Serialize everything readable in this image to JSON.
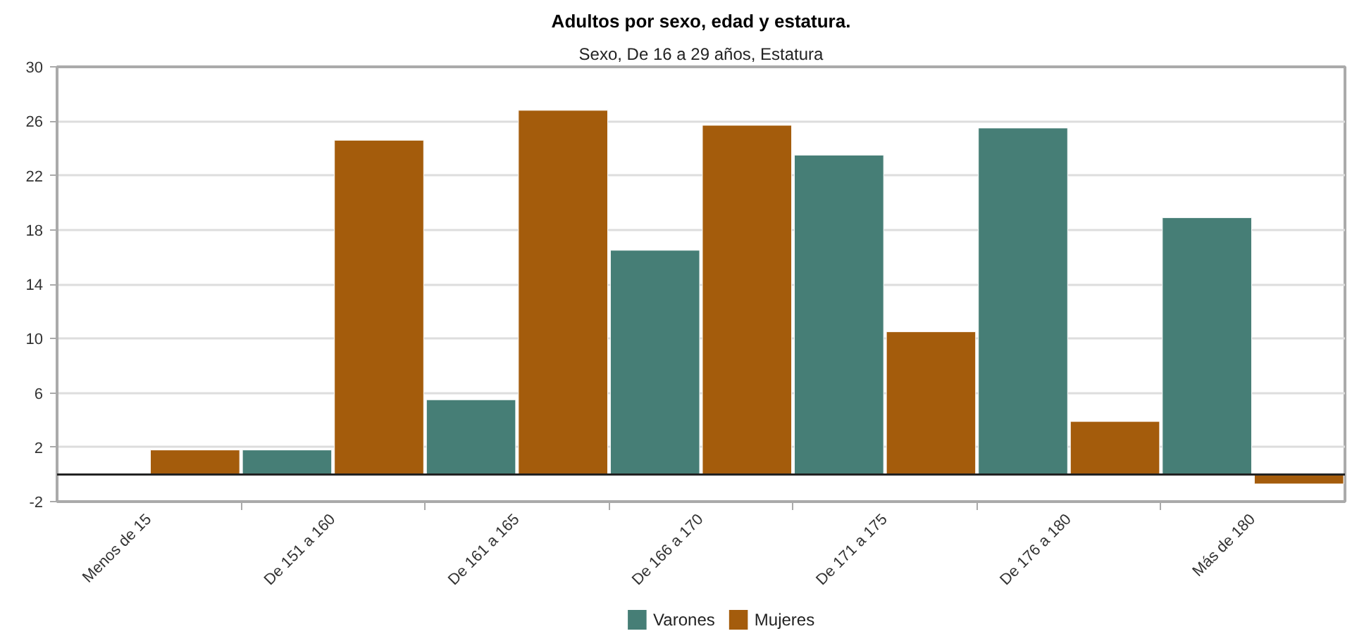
{
  "chart_data": {
    "type": "bar",
    "title": "Adultos por sexo, edad y estatura.",
    "subtitle": "Sexo, De 16 a 29 años, Estatura",
    "categories": [
      "Menos de 15",
      "De 151 a 160",
      "De 161 a 165",
      "De 166 a 170",
      "De 171 a 175",
      "De 176 a 180",
      "Más de 180"
    ],
    "series": [
      {
        "name": "Varones",
        "color": "#467e76",
        "values": [
          null,
          1.8,
          5.5,
          16.5,
          23.5,
          25.5,
          18.9
        ]
      },
      {
        "name": "Mujeres",
        "color": "#a45c0c",
        "values": [
          1.8,
          24.6,
          26.8,
          25.7,
          10.5,
          3.9,
          -0.7
        ]
      }
    ],
    "ylim": [
      -2,
      30
    ],
    "yticks": [
      -2,
      2,
      6,
      10,
      14,
      18,
      22,
      26,
      30
    ],
    "grid": "y",
    "legend": "bottom",
    "ref_lines": [
      {
        "axis": "y",
        "value": 0,
        "color": "#222222"
      }
    ]
  }
}
